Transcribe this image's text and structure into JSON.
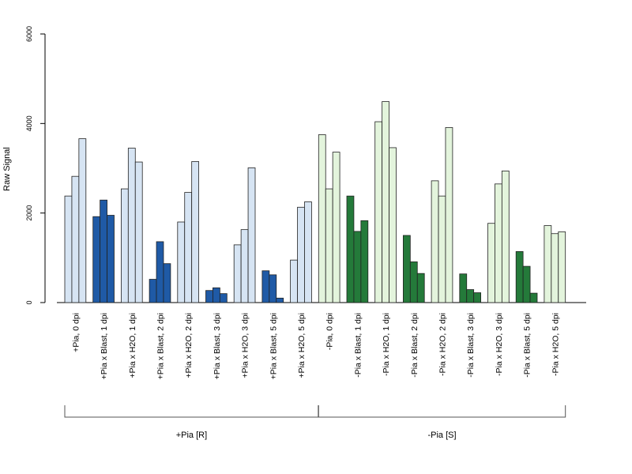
{
  "chart_data": {
    "type": "bar",
    "ylabel": "Raw Signal",
    "ylim": [
      0,
      6000
    ],
    "yticks": [
      0,
      2000,
      4000,
      6000
    ],
    "grid": false,
    "legend": "none",
    "categories": [
      "+Pia, 0 dpi",
      "+Pia x Blast, 1 dpi",
      "+Pia x H2O, 1 dpi",
      "+Pia x Blast, 2 dpi",
      "+Pia x H2O, 2 dpi",
      "+Pia x Blast, 3 dpi",
      "+Pia x H2O, 3 dpi",
      "+Pia x Blast, 5 dpi",
      "+Pia x H2O, 5 dpi",
      "-Pia, 0 dpi",
      "-Pia x Blast, 1 dpi",
      "-Pia x H2O, 1 dpi",
      "-Pia x Blast, 2 dpi",
      "-Pia x H2O, 2 dpi",
      "-Pia x Blast, 3 dpi",
      "-Pia x H2O, 3 dpi",
      "-Pia x Blast, 5 dpi",
      "-Pia x H2O, 5 dpi"
    ],
    "replicates_per_category": 3,
    "values": [
      [
        2380,
        2820,
        3660
      ],
      [
        1920,
        2290,
        1950
      ],
      [
        2540,
        3450,
        3140
      ],
      [
        520,
        1360,
        870
      ],
      [
        1800,
        2460,
        3150
      ],
      [
        270,
        330,
        200
      ],
      [
        1290,
        1630,
        3010
      ],
      [
        710,
        620,
        100
      ],
      [
        950,
        2130,
        2250
      ],
      [
        3750,
        2540,
        3360
      ],
      [
        2380,
        1590,
        1830
      ],
      [
        4040,
        4490,
        3460
      ],
      [
        1500,
        910,
        650
      ],
      [
        2720,
        2380,
        3910
      ],
      [
        640,
        290,
        220
      ],
      [
        1770,
        2650,
        2940
      ],
      [
        1140,
        810,
        210
      ],
      [
        1720,
        1540,
        1580
      ]
    ],
    "bar_colors": [
      "#d6e4f3",
      "#1f5aa6",
      "#d6e4f3",
      "#1f5aa6",
      "#d6e4f3",
      "#1f5aa6",
      "#d6e4f3",
      "#1f5aa6",
      "#d6e4f3",
      "#e3f4dc",
      "#247a3a",
      "#e3f4dc",
      "#247a3a",
      "#e3f4dc",
      "#247a3a",
      "#e3f4dc",
      "#247a3a",
      "#e3f4dc"
    ],
    "groups": [
      {
        "label": "+Pia [R]",
        "first_category": 0,
        "last_category": 8
      },
      {
        "label": "-Pia [S]",
        "first_category": 9,
        "last_category": 17
      }
    ]
  }
}
